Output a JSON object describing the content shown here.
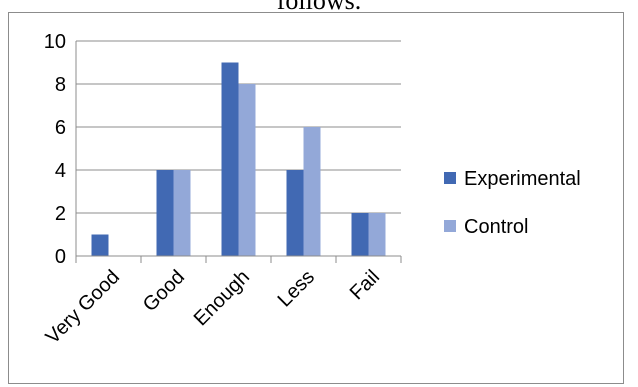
{
  "header": {
    "cropped_caption": "follows."
  },
  "chart_data": {
    "type": "bar",
    "categories": [
      "Very Good",
      "Good",
      "Enough",
      "Less",
      "Fail"
    ],
    "series": [
      {
        "name": "Experimental",
        "values": [
          1,
          4,
          9,
          4,
          2
        ],
        "color": "#4169b3"
      },
      {
        "name": "Control",
        "values": [
          0,
          4,
          8,
          6,
          2
        ],
        "color": "#93a8d8"
      }
    ],
    "yticks": [
      "0",
      "2",
      "4",
      "6",
      "8",
      "10"
    ],
    "ylim": [
      0,
      10
    ],
    "grid": true,
    "legend": "right",
    "gridline_color": "#8c8c8c"
  }
}
